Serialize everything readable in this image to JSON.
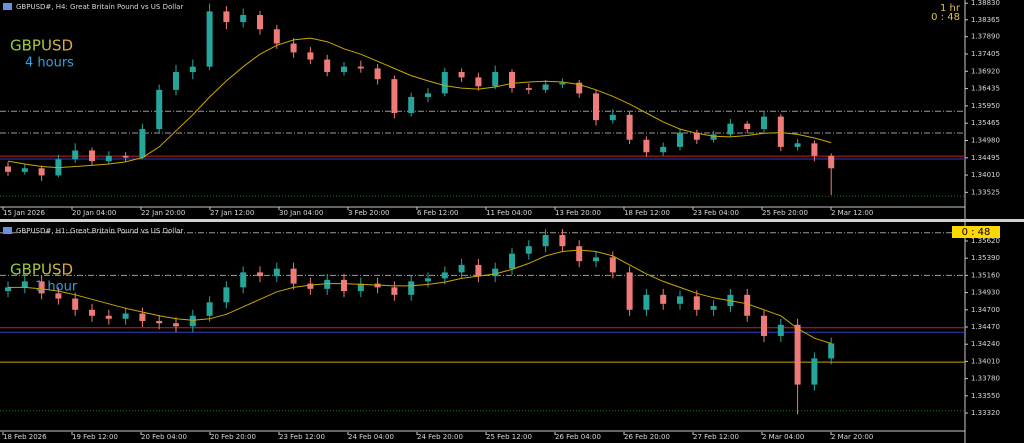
{
  "chart_data": [
    {
      "type": "candlestick",
      "title": "GBPUSD#, H4:  Great Britain Pound vs US Dollar",
      "symbol_label": "GBPUSD",
      "period_label": "4 hours",
      "period_badge": "1 hr",
      "timer": "0 : 48",
      "up_color": "#26a69a",
      "down_color": "#ef7b78",
      "ma_color": "#c9a800",
      "ylim": [
        1.3317,
        1.3892
      ],
      "yticks": [
        {
          "value": 1.3883,
          "label": "1.38830"
        },
        {
          "value": 1.38365,
          "label": "1.38365"
        },
        {
          "value": 1.3789,
          "label": "1.37890"
        },
        {
          "value": 1.37405,
          "label": "1.37405"
        },
        {
          "value": 1.3692,
          "label": "1.36920"
        },
        {
          "value": 1.36435,
          "label": "1.36435"
        },
        {
          "value": 1.3595,
          "label": "1.35950"
        },
        {
          "value": 1.35465,
          "label": "1.35465"
        },
        {
          "value": 1.3498,
          "label": "1.34980"
        },
        {
          "value": 1.34495,
          "label": "1.34495"
        },
        {
          "value": 1.3401,
          "label": "1.34010"
        },
        {
          "value": 1.33525,
          "label": "1.33525"
        }
      ],
      "xtick_labels": [
        "15 Jan 2026",
        "20 Jan 04:00",
        "22 Jan 20:00",
        "27 Jan 12:00",
        "30 Jan 04:00",
        "3 Feb 20:00",
        "6 Feb 12:00",
        "11 Feb 04:00",
        "13 Feb 20:00",
        "18 Feb 12:00",
        "23 Feb 04:00",
        "25 Feb 20:00",
        "2 Mar 12:00"
      ],
      "levels": [
        {
          "value": 1.358,
          "color": "#9a9a9a",
          "style": "dashdot"
        },
        {
          "value": 1.3519,
          "color": "#9a9a9a",
          "style": "dashdot"
        },
        {
          "value": 1.3454,
          "color": "#d02020",
          "style": "solid"
        },
        {
          "value": 1.3446,
          "color": "#3040c0",
          "style": "solid"
        },
        {
          "value": 1.3342,
          "color": "#1d7a1d",
          "style": "dotted"
        }
      ],
      "ohlc": [
        [
          1.3425,
          1.3438,
          1.3398,
          1.341
        ],
        [
          1.341,
          1.3432,
          1.3402,
          1.342
        ],
        [
          1.342,
          1.3428,
          1.3385,
          1.34
        ],
        [
          1.34,
          1.3458,
          1.3395,
          1.3445
        ],
        [
          1.3445,
          1.349,
          1.3435,
          1.347
        ],
        [
          1.347,
          1.3478,
          1.3428,
          1.344
        ],
        [
          1.344,
          1.3468,
          1.343,
          1.3455
        ],
        [
          1.3455,
          1.3465,
          1.3438,
          1.345
        ],
        [
          1.345,
          1.3545,
          1.3445,
          1.353
        ],
        [
          1.353,
          1.3655,
          1.352,
          1.364
        ],
        [
          1.364,
          1.371,
          1.3625,
          1.369
        ],
        [
          1.369,
          1.3725,
          1.367,
          1.3705
        ],
        [
          1.3705,
          1.3882,
          1.3695,
          1.386
        ],
        [
          1.386,
          1.3875,
          1.381,
          1.383
        ],
        [
          1.383,
          1.3868,
          1.3815,
          1.385
        ],
        [
          1.385,
          1.3862,
          1.3795,
          1.381
        ],
        [
          1.381,
          1.3822,
          1.3755,
          1.377
        ],
        [
          1.377,
          1.3785,
          1.373,
          1.3745
        ],
        [
          1.3745,
          1.376,
          1.3712,
          1.3725
        ],
        [
          1.3725,
          1.3738,
          1.3678,
          1.369
        ],
        [
          1.369,
          1.3718,
          1.368,
          1.3705
        ],
        [
          1.3705,
          1.3722,
          1.3688,
          1.37
        ],
        [
          1.37,
          1.3712,
          1.3655,
          1.367
        ],
        [
          1.367,
          1.368,
          1.356,
          1.3575
        ],
        [
          1.3575,
          1.3632,
          1.3565,
          1.362
        ],
        [
          1.362,
          1.3645,
          1.3605,
          1.363
        ],
        [
          1.363,
          1.3702,
          1.3622,
          1.369
        ],
        [
          1.369,
          1.37,
          1.3662,
          1.3675
        ],
        [
          1.3675,
          1.3688,
          1.3638,
          1.365
        ],
        [
          1.365,
          1.3708,
          1.3642,
          1.369
        ],
        [
          1.369,
          1.3698,
          1.3632,
          1.3645
        ],
        [
          1.3645,
          1.3658,
          1.3628,
          1.364
        ],
        [
          1.364,
          1.3668,
          1.3632,
          1.3655
        ],
        [
          1.3655,
          1.3672,
          1.3645,
          1.366
        ],
        [
          1.366,
          1.3668,
          1.3618,
          1.363
        ],
        [
          1.363,
          1.364,
          1.354,
          1.3555
        ],
        [
          1.3555,
          1.3585,
          1.3545,
          1.357
        ],
        [
          1.357,
          1.3578,
          1.3488,
          1.35
        ],
        [
          1.35,
          1.351,
          1.3452,
          1.3465
        ],
        [
          1.3465,
          1.3492,
          1.3455,
          1.348
        ],
        [
          1.348,
          1.3532,
          1.347,
          1.352
        ],
        [
          1.352,
          1.3528,
          1.3488,
          1.35
        ],
        [
          1.35,
          1.3525,
          1.3492,
          1.3515
        ],
        [
          1.3515,
          1.3558,
          1.3508,
          1.3545
        ],
        [
          1.3545,
          1.3552,
          1.3518,
          1.353
        ],
        [
          1.353,
          1.3578,
          1.3522,
          1.3565
        ],
        [
          1.3565,
          1.3572,
          1.3468,
          1.348
        ],
        [
          1.348,
          1.3502,
          1.347,
          1.349
        ],
        [
          1.349,
          1.3498,
          1.344,
          1.3455
        ],
        [
          1.3455,
          1.3462,
          1.3345,
          1.342
        ]
      ],
      "ma": [
        1.344,
        1.3432,
        1.3425,
        1.3422,
        1.3425,
        1.3428,
        1.3432,
        1.3438,
        1.345,
        1.348,
        1.3525,
        1.357,
        1.362,
        1.3665,
        1.3705,
        1.374,
        1.3765,
        1.378,
        1.3785,
        1.3775,
        1.3755,
        1.374,
        1.372,
        1.37,
        1.368,
        1.3665,
        1.3652,
        1.3645,
        1.3642,
        1.3648,
        1.3658,
        1.3662,
        1.3664,
        1.3662,
        1.3655,
        1.364,
        1.3622,
        1.36,
        1.3575,
        1.355,
        1.353,
        1.3518,
        1.351,
        1.3508,
        1.3512,
        1.3518,
        1.352,
        1.3515,
        1.3505,
        1.3492
      ]
    },
    {
      "type": "candlestick",
      "title": "GBPUSD#, H1:  Great Britain Pound vs US Dollar",
      "symbol_label": "GBPUSD",
      "period_label": "1 hour",
      "timer": "0 : 48",
      "up_color": "#26a69a",
      "down_color": "#ef7b78",
      "ma_color": "#c9a800",
      "ylim": [
        1.33093,
        1.35847
      ],
      "yticks": [
        {
          "value": 1.3562,
          "label": "1.35620"
        },
        {
          "value": 1.3539,
          "label": "1.35390"
        },
        {
          "value": 1.3516,
          "label": "1.35160"
        },
        {
          "value": 1.3493,
          "label": "1.34930"
        },
        {
          "value": 1.347,
          "label": "1.34700"
        },
        {
          "value": 1.3447,
          "label": "1.34470"
        },
        {
          "value": 1.3424,
          "label": "1.34240"
        },
        {
          "value": 1.3401,
          "label": "1.34010"
        },
        {
          "value": 1.3378,
          "label": "1.33780"
        },
        {
          "value": 1.3355,
          "label": "1.33550"
        },
        {
          "value": 1.3332,
          "label": "1.33320"
        }
      ],
      "xtick_labels": [
        "18 Feb 2026",
        "19 Feb 12:00",
        "20 Feb 04:00",
        "20 Feb 20:00",
        "23 Feb 12:00",
        "24 Feb 04:00",
        "24 Feb 20:00",
        "25 Feb 12:00",
        "26 Feb 04:00",
        "26 Feb 20:00",
        "27 Feb 12:00",
        "2 Mar 04:00",
        "2 Mar 20:00"
      ],
      "levels": [
        {
          "value": 1.3573,
          "color": "#9a9a9a",
          "style": "dashdot"
        },
        {
          "value": 1.3516,
          "color": "#9a9a9a",
          "style": "dashdot"
        },
        {
          "value": 1.3446,
          "color": "#d02020",
          "style": "solid"
        },
        {
          "value": 1.344,
          "color": "#3040c0",
          "style": "solid"
        },
        {
          "value": 1.34,
          "color": "#c9a800",
          "style": "solid"
        },
        {
          "value": 1.3335,
          "color": "#1d7a1d",
          "style": "dotted"
        }
      ],
      "ohlc": [
        [
          1.3495,
          1.3508,
          1.3487,
          1.35
        ],
        [
          1.35,
          1.3516,
          1.3492,
          1.3508
        ],
        [
          1.3508,
          1.3516,
          1.3484,
          1.3492
        ],
        [
          1.3492,
          1.35,
          1.3477,
          1.3485
        ],
        [
          1.3485,
          1.3493,
          1.3462,
          1.347
        ],
        [
          1.347,
          1.3478,
          1.3454,
          1.3462
        ],
        [
          1.3462,
          1.347,
          1.345,
          1.3458
        ],
        [
          1.3458,
          1.3473,
          1.345,
          1.3465
        ],
        [
          1.3465,
          1.3473,
          1.3447,
          1.3455
        ],
        [
          1.3455,
          1.3463,
          1.3444,
          1.3452
        ],
        [
          1.3452,
          1.346,
          1.344,
          1.3448
        ],
        [
          1.3448,
          1.347,
          1.344,
          1.3462
        ],
        [
          1.3462,
          1.3488,
          1.3454,
          1.348
        ],
        [
          1.348,
          1.3508,
          1.3472,
          1.35
        ],
        [
          1.35,
          1.3528,
          1.3492,
          1.352
        ],
        [
          1.352,
          1.3528,
          1.3507,
          1.3515
        ],
        [
          1.3515,
          1.3533,
          1.3507,
          1.3525
        ],
        [
          1.3525,
          1.3533,
          1.3497,
          1.3505
        ],
        [
          1.3505,
          1.3513,
          1.349,
          1.3498
        ],
        [
          1.3498,
          1.3518,
          1.349,
          1.351
        ],
        [
          1.351,
          1.3518,
          1.3487,
          1.3495
        ],
        [
          1.3495,
          1.3513,
          1.3487,
          1.3505
        ],
        [
          1.3505,
          1.3513,
          1.3492,
          1.35
        ],
        [
          1.35,
          1.3508,
          1.3482,
          1.349
        ],
        [
          1.349,
          1.3516,
          1.3482,
          1.3508
        ],
        [
          1.3508,
          1.352,
          1.35,
          1.3512
        ],
        [
          1.3512,
          1.3528,
          1.3504,
          1.352
        ],
        [
          1.352,
          1.3538,
          1.3512,
          1.353
        ],
        [
          1.353,
          1.3538,
          1.3507,
          1.3515
        ],
        [
          1.3515,
          1.3533,
          1.3507,
          1.3525
        ],
        [
          1.3525,
          1.3553,
          1.3517,
          1.3545
        ],
        [
          1.3545,
          1.3563,
          1.3537,
          1.3555
        ],
        [
          1.3555,
          1.3578,
          1.3547,
          1.357
        ],
        [
          1.357,
          1.3578,
          1.3547,
          1.3555
        ],
        [
          1.3555,
          1.3563,
          1.3527,
          1.3535
        ],
        [
          1.3535,
          1.3548,
          1.3527,
          1.354
        ],
        [
          1.354,
          1.3548,
          1.3512,
          1.352
        ],
        [
          1.352,
          1.3528,
          1.3462,
          1.347
        ],
        [
          1.347,
          1.3498,
          1.3462,
          1.349
        ],
        [
          1.349,
          1.3498,
          1.347,
          1.3478
        ],
        [
          1.3478,
          1.3496,
          1.347,
          1.3488
        ],
        [
          1.3488,
          1.3496,
          1.3462,
          1.347
        ],
        [
          1.347,
          1.3483,
          1.3462,
          1.3475
        ],
        [
          1.3475,
          1.3498,
          1.3467,
          1.349
        ],
        [
          1.349,
          1.3498,
          1.3454,
          1.3462
        ],
        [
          1.3462,
          1.347,
          1.3427,
          1.3435
        ],
        [
          1.3435,
          1.3458,
          1.3427,
          1.345
        ],
        [
          1.345,
          1.3458,
          1.333,
          1.337
        ],
        [
          1.337,
          1.3413,
          1.3362,
          1.3405
        ],
        [
          1.3405,
          1.3433,
          1.3397,
          1.3425
        ]
      ],
      "ma": [
        1.35,
        1.35,
        1.3498,
        1.3495,
        1.349,
        1.3484,
        1.3478,
        1.3472,
        1.3467,
        1.3462,
        1.3458,
        1.3456,
        1.3458,
        1.3464,
        1.3474,
        1.3484,
        1.3494,
        1.35,
        1.3503,
        1.3505,
        1.3505,
        1.3504,
        1.3503,
        1.3502,
        1.3502,
        1.3504,
        1.3507,
        1.3512,
        1.3515,
        1.3518,
        1.3524,
        1.3532,
        1.3542,
        1.3548,
        1.355,
        1.3548,
        1.3542,
        1.353,
        1.3518,
        1.3508,
        1.35,
        1.3492,
        1.3486,
        1.3482,
        1.3478,
        1.347,
        1.3462,
        1.3445,
        1.3432,
        1.3425
      ]
    }
  ]
}
